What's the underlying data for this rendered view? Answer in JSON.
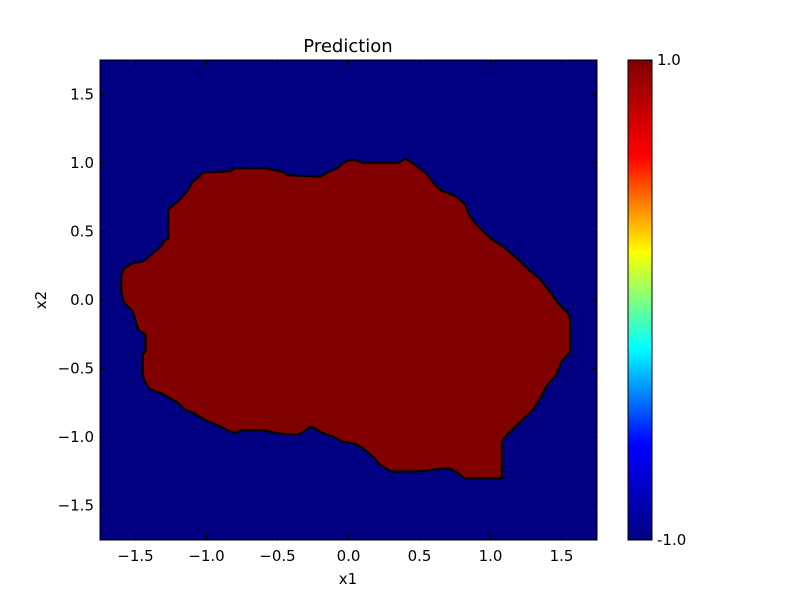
{
  "chart_data": {
    "type": "heatmap",
    "title": "Prediction",
    "xlabel": "x1",
    "ylabel": "x2",
    "xlim": [
      -1.75,
      1.75
    ],
    "ylim": [
      -1.75,
      1.75
    ],
    "xticks": [
      -1.5,
      -1.0,
      -0.5,
      0.0,
      0.5,
      1.0,
      1.5
    ],
    "yticks": [
      -1.5,
      -1.0,
      -0.5,
      0.0,
      0.5,
      1.0,
      1.5
    ],
    "xtick_labels": [
      "−1.5",
      "−1.0",
      "−0.5",
      "0.0",
      "0.5",
      "1.0",
      "1.5"
    ],
    "ytick_labels": [
      "−1.5",
      "−1.0",
      "−0.5",
      "0.0",
      "0.5",
      "1.0",
      "1.5"
    ],
    "grid": false,
    "colormap": "jet",
    "colorbar": {
      "min": -1.0,
      "max": 1.0,
      "max_label": "1.0",
      "min_label": "-1.0",
      "stops": [
        "#000080",
        "#0000ff",
        "#00ffff",
        "#ffff00",
        "#ff0000",
        "#800000"
      ]
    },
    "classes": {
      "outside": {
        "value": -1.0,
        "color": "#000080"
      },
      "inside": {
        "value": 1.0,
        "color": "#800000"
      }
    },
    "decision_boundary": [
      [
        -1.58,
        0.23
      ],
      [
        -1.52,
        0.27
      ],
      [
        -1.45,
        0.28
      ],
      [
        -1.4,
        0.32
      ],
      [
        -1.32,
        0.39
      ],
      [
        -1.3,
        0.43
      ],
      [
        -1.27,
        0.45
      ],
      [
        -1.27,
        0.66
      ],
      [
        -1.2,
        0.72
      ],
      [
        -1.13,
        0.8
      ],
      [
        -1.1,
        0.86
      ],
      [
        -1.05,
        0.9
      ],
      [
        -1.03,
        0.93
      ],
      [
        -0.83,
        0.94
      ],
      [
        -0.8,
        0.96
      ],
      [
        -0.58,
        0.96
      ],
      [
        -0.45,
        0.93
      ],
      [
        -0.43,
        0.91
      ],
      [
        -0.2,
        0.9
      ],
      [
        -0.15,
        0.93
      ],
      [
        -0.08,
        0.96
      ],
      [
        -0.05,
        0.99
      ],
      [
        0.0,
        1.02
      ],
      [
        0.05,
        1.02
      ],
      [
        0.1,
        1.0
      ],
      [
        0.35,
        1.0
      ],
      [
        0.4,
        1.03
      ],
      [
        0.45,
        1.0
      ],
      [
        0.55,
        0.92
      ],
      [
        0.6,
        0.85
      ],
      [
        0.65,
        0.8
      ],
      [
        0.75,
        0.76
      ],
      [
        0.82,
        0.7
      ],
      [
        0.85,
        0.62
      ],
      [
        0.9,
        0.55
      ],
      [
        0.95,
        0.5
      ],
      [
        1.0,
        0.45
      ],
      [
        1.1,
        0.38
      ],
      [
        1.2,
        0.29
      ],
      [
        1.28,
        0.21
      ],
      [
        1.35,
        0.15
      ],
      [
        1.42,
        0.06
      ],
      [
        1.48,
        -0.03
      ],
      [
        1.55,
        -0.1
      ],
      [
        1.56,
        -0.15
      ],
      [
        1.56,
        -0.38
      ],
      [
        1.5,
        -0.45
      ],
      [
        1.46,
        -0.55
      ],
      [
        1.4,
        -0.62
      ],
      [
        1.37,
        -0.68
      ],
      [
        1.33,
        -0.75
      ],
      [
        1.3,
        -0.8
      ],
      [
        1.22,
        -0.88
      ],
      [
        1.15,
        -0.95
      ],
      [
        1.1,
        -1.0
      ],
      [
        1.08,
        -1.03
      ],
      [
        1.08,
        -1.3
      ],
      [
        0.82,
        -1.3
      ],
      [
        0.78,
        -1.27
      ],
      [
        0.72,
        -1.23
      ],
      [
        0.65,
        -1.23
      ],
      [
        0.5,
        -1.25
      ],
      [
        0.3,
        -1.25
      ],
      [
        0.22,
        -1.2
      ],
      [
        0.18,
        -1.15
      ],
      [
        0.1,
        -1.08
      ],
      [
        0.05,
        -1.05
      ],
      [
        -0.05,
        -1.03
      ],
      [
        -0.1,
        -1.0
      ],
      [
        -0.18,
        -0.97
      ],
      [
        -0.25,
        -0.93
      ],
      [
        -0.28,
        -0.93
      ],
      [
        -0.3,
        -0.95
      ],
      [
        -0.35,
        -0.98
      ],
      [
        -0.45,
        -0.98
      ],
      [
        -0.6,
        -0.95
      ],
      [
        -0.75,
        -0.95
      ],
      [
        -0.8,
        -0.97
      ],
      [
        -0.85,
        -0.95
      ],
      [
        -0.95,
        -0.9
      ],
      [
        -1.0,
        -0.88
      ],
      [
        -1.05,
        -0.85
      ],
      [
        -1.1,
        -0.82
      ],
      [
        -1.15,
        -0.8
      ],
      [
        -1.2,
        -0.75
      ],
      [
        -1.25,
        -0.72
      ],
      [
        -1.32,
        -0.68
      ],
      [
        -1.4,
        -0.65
      ],
      [
        -1.43,
        -0.6
      ],
      [
        -1.45,
        -0.55
      ],
      [
        -1.45,
        -0.4
      ],
      [
        -1.43,
        -0.37
      ],
      [
        -1.43,
        -0.25
      ],
      [
        -1.48,
        -0.22
      ],
      [
        -1.52,
        -0.08
      ],
      [
        -1.58,
        -0.02
      ],
      [
        -1.6,
        0.05
      ],
      [
        -1.6,
        0.18
      ]
    ]
  }
}
